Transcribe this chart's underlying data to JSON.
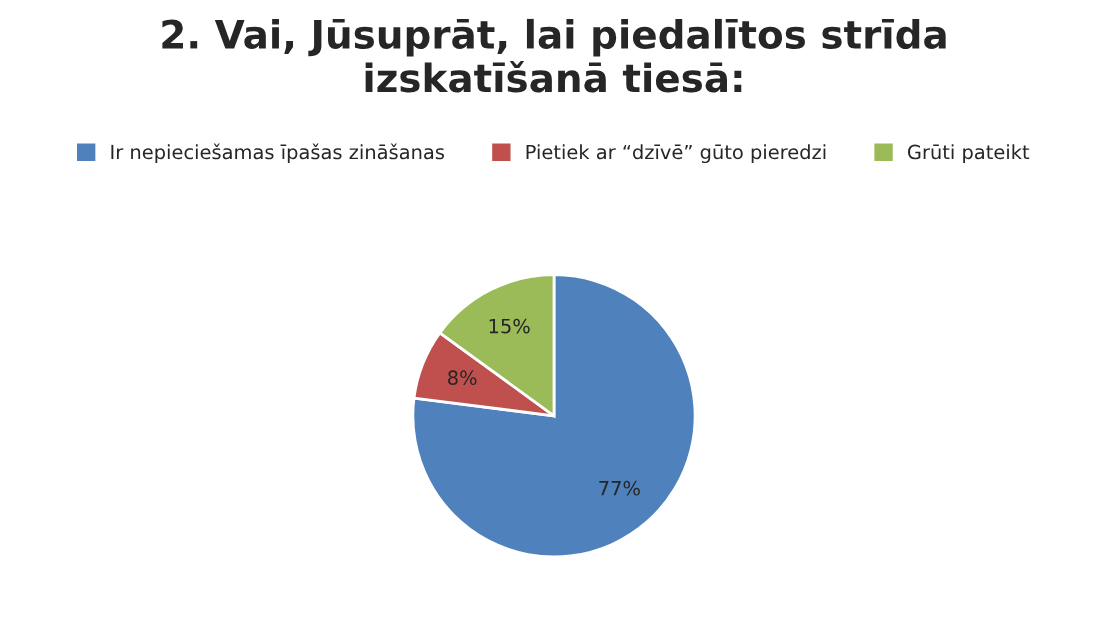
{
  "chart_data": {
    "type": "pie",
    "title": "2. Vai, Jūsuprāt, lai piedalītos strīda\nizskatīšanā tiesā:",
    "categories": [
      "Ir nepieciešamas īpašas zināšanas",
      "Pietiek ar “dzīvē” gūto pieredzi",
      "Grūti pateikt"
    ],
    "values": [
      77,
      8,
      15
    ],
    "colors": [
      "#4f81bd",
      "#c0504d",
      "#9bbb59"
    ],
    "value_labels": [
      "77%",
      "8%",
      "15%"
    ],
    "legend": "top"
  }
}
